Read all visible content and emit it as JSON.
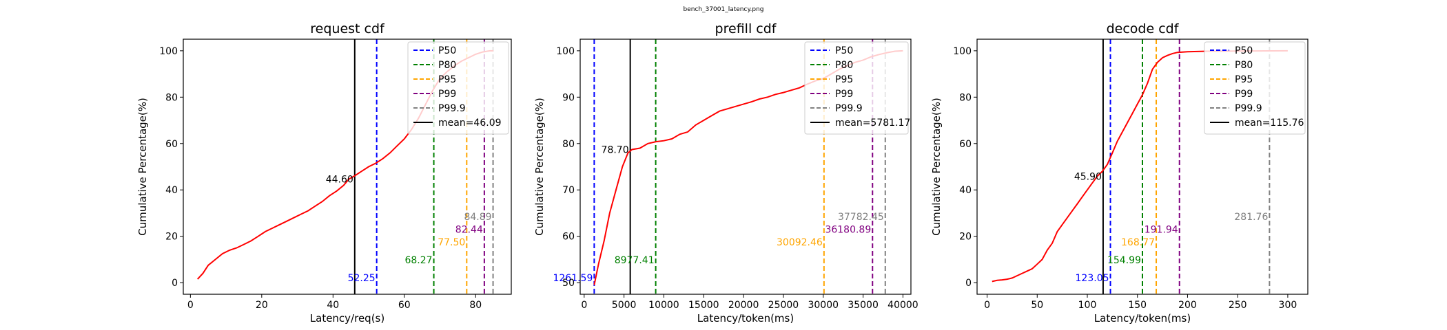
{
  "figure": {
    "suptitle": "bench_37001_latency.png"
  },
  "chart_data": [
    {
      "type": "line",
      "title": "request cdf",
      "xlabel": "Latency/req(s)",
      "ylabel": "Cumulative Percentage(%)",
      "xlim": [
        -2,
        90
      ],
      "ylim": [
        -5,
        105
      ],
      "xticks": [
        0,
        20,
        40,
        60,
        80
      ],
      "yticks": [
        0,
        20,
        40,
        60,
        80,
        100
      ],
      "grid": false,
      "legend_position": "top-right",
      "series": [
        {
          "color": "#ff0000",
          "x": [
            2,
            3.5,
            5,
            7,
            9,
            11,
            13,
            15,
            17,
            19,
            21,
            23,
            25,
            27,
            29,
            31,
            33,
            35,
            37,
            39,
            41,
            43,
            44.4,
            46,
            48,
            50,
            52,
            54,
            56,
            58,
            60,
            62,
            64,
            66,
            68,
            70,
            72,
            74,
            76,
            78,
            80,
            82,
            84,
            85
          ],
          "y": [
            1.5,
            4,
            7.5,
            10,
            12.5,
            14,
            15,
            16.5,
            18,
            20,
            22,
            23.5,
            25,
            26.5,
            28,
            29.5,
            31,
            33,
            35,
            37.5,
            39.5,
            42,
            44.6,
            46,
            48,
            50,
            51.5,
            53.5,
            56,
            59,
            62,
            66,
            71,
            77,
            83,
            88,
            91,
            93.5,
            95.5,
            97,
            98.5,
            99.5,
            100,
            100
          ]
        }
      ],
      "percentiles": [
        {
          "name": "P50",
          "value": 52.25,
          "label": "52.25",
          "color": "#0000ff"
        },
        {
          "name": "P80",
          "value": 68.27,
          "label": "68.27",
          "color": "#008000"
        },
        {
          "name": "P95",
          "value": 77.5,
          "label": "77.50",
          "color": "#ffa500"
        },
        {
          "name": "P99",
          "value": 82.44,
          "label": "82.44",
          "color": "#800080"
        },
        {
          "name": "P99.9",
          "value": 84.89,
          "label": "84.89",
          "color": "#808080"
        }
      ],
      "mean": {
        "value": 46.09,
        "legend": "mean=46.09",
        "label": "44.60",
        "cdf_at_mean": 44.6
      }
    },
    {
      "type": "line",
      "title": "prefill cdf",
      "xlabel": "Latency/token(ms)",
      "ylabel": "Cumulative Percentage(%)",
      "xlim": [
        -500,
        41000
      ],
      "ylim": [
        47.5,
        102.5
      ],
      "xticks": [
        0,
        5000,
        10000,
        15000,
        20000,
        25000,
        30000,
        35000,
        40000
      ],
      "yticks": [
        50,
        60,
        70,
        80,
        90,
        100
      ],
      "grid": false,
      "legend_position": "top-right",
      "series": [
        {
          "color": "#ff0000",
          "x": [
            1261,
            1800,
            2500,
            3200,
            4000,
            4800,
            5500,
            6000,
            7000,
            8000,
            9000,
            10000,
            11000,
            12000,
            13000,
            14000,
            15000,
            16000,
            17000,
            18000,
            19000,
            20000,
            21000,
            22000,
            23000,
            24000,
            25000,
            26000,
            27000,
            28000,
            29000,
            30000,
            31000,
            32000,
            33000,
            34000,
            35000,
            36000,
            37000,
            38000,
            39000,
            40000
          ],
          "y": [
            49.5,
            54,
            59,
            65,
            70,
            75,
            78,
            78.7,
            79,
            80,
            80.4,
            80.6,
            81,
            82,
            82.5,
            84,
            85,
            86,
            87,
            87.5,
            88,
            88.5,
            89,
            89.6,
            90,
            90.6,
            91,
            91.5,
            92,
            92.8,
            93.5,
            94,
            95,
            96,
            96.8,
            97.5,
            98,
            98.7,
            99.2,
            99.6,
            99.9,
            100
          ]
        }
      ],
      "percentiles": [
        {
          "name": "P50",
          "value": 1261.59,
          "label": "1261.59",
          "color": "#0000ff"
        },
        {
          "name": "P80",
          "value": 8977.41,
          "label": "8977.41",
          "color": "#008000"
        },
        {
          "name": "P95",
          "value": 30092.46,
          "label": "30092.46",
          "color": "#ffa500"
        },
        {
          "name": "P99",
          "value": 36180.89,
          "label": "36180.89",
          "color": "#800080"
        },
        {
          "name": "P99.9",
          "value": 37782.45,
          "label": "37782.45",
          "color": "#808080"
        }
      ],
      "mean": {
        "value": 5781.17,
        "legend": "mean=5781.17",
        "label": "78.70",
        "cdf_at_mean": 78.7
      }
    },
    {
      "type": "line",
      "title": "decode cdf",
      "xlabel": "Latency/token(ms)",
      "ylabel": "Cumulative Percentage(%)",
      "xlim": [
        -10,
        320
      ],
      "ylim": [
        -5,
        105
      ],
      "xticks": [
        0,
        50,
        100,
        150,
        200,
        250,
        300
      ],
      "yticks": [
        0,
        20,
        40,
        60,
        80,
        100
      ],
      "grid": false,
      "legend_position": "top-right",
      "series": [
        {
          "color": "#ff0000",
          "x": [
            5,
            10,
            15,
            20,
            25,
            30,
            35,
            40,
            45,
            50,
            55,
            60,
            65,
            70,
            75,
            80,
            85,
            90,
            95,
            100,
            105,
            110,
            115,
            120,
            125,
            130,
            135,
            140,
            145,
            150,
            155,
            160,
            165,
            170,
            175,
            180,
            185,
            190,
            200,
            220,
            250,
            300
          ],
          "y": [
            0.5,
            1,
            1.2,
            1.5,
            2,
            3,
            4,
            5,
            6,
            8,
            10,
            14,
            17,
            22,
            25,
            28,
            31,
            34,
            37,
            40,
            43,
            45.9,
            48,
            51,
            56,
            61,
            65,
            69,
            73,
            77,
            81,
            86,
            92,
            95,
            97,
            98,
            98.8,
            99.3,
            99.6,
            99.8,
            99.9,
            100
          ]
        }
      ],
      "percentiles": [
        {
          "name": "P50",
          "value": 123.05,
          "label": "123.05",
          "color": "#0000ff"
        },
        {
          "name": "P80",
          "value": 154.99,
          "label": "154.99",
          "color": "#008000"
        },
        {
          "name": "P95",
          "value": 168.77,
          "label": "168.77",
          "color": "#ffa500"
        },
        {
          "name": "P99",
          "value": 191.94,
          "label": "191.94",
          "color": "#800080"
        },
        {
          "name": "P99.9",
          "value": 281.76,
          "label": "281.76",
          "color": "#808080"
        }
      ],
      "mean": {
        "value": 115.76,
        "legend": "mean=115.76",
        "label": "45.90",
        "cdf_at_mean": 45.9
      }
    }
  ]
}
